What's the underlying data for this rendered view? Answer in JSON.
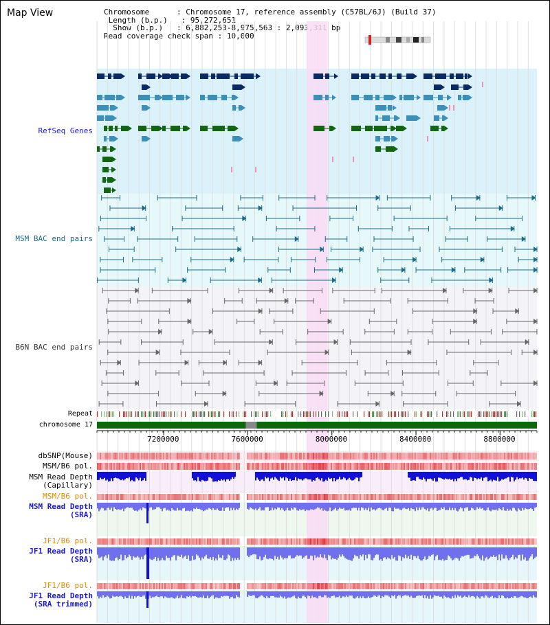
{
  "title": "Map View",
  "info": {
    "chromosome_label": "Chromosome",
    "chromosome_value": "Chromosome 17, reference assembly (C57BL/6J) (Build 37)",
    "length_label": "Length (b.p.)",
    "length_value": "95,272,651",
    "show_label": "Show (b.p.)",
    "show_value": "6,882,253-8,975,563 : 2,093,311 bp",
    "coverage_label": "Read coverage check span",
    "coverage_value": "10,000"
  },
  "tracks": {
    "refseq": "RefSeq Genes",
    "msm_bac": "MSM BAC end pairs",
    "b6n_bac": "B6N BAC end pairs",
    "repeat": "Repeat",
    "chromosome": "chromosome 17",
    "dbsnp": "dbSNP(Mouse)",
    "msm_b6_pol_1": "MSM/B6 pol.",
    "msm_depth_cap_1": "MSM Read Depth",
    "msm_depth_cap_2": "(Capillary)",
    "msm_b6_pol_2": "MSM/B6 pol.",
    "msm_depth_sra_1": "MSM Read Depth",
    "msm_depth_sra_2": "(SRA)",
    "jf1_pol_1": "JF1/B6 pol.",
    "jf1_depth_1": "JF1 Read Depth",
    "jf1_depth_2": "(SRA)",
    "jf1_pol_2": "JF1/B6 pol.",
    "jf1_trim_1": "JF1 Read Depth",
    "jf1_trim_2": "(SRA trimmed)"
  },
  "axis": {
    "ticks": [
      "7200000",
      "7600000",
      "8000000",
      "8400000",
      "8800000"
    ],
    "tick_values": [
      7200000,
      7600000,
      8000000,
      8400000,
      8800000
    ],
    "start": 6882253,
    "end": 8975563
  },
  "highlight": {
    "start": 7880000,
    "end": 7980000
  },
  "colors": {
    "refseq_bg": "#dcf2fa",
    "msm_bg": "#e6f8fa",
    "b6n_bg": "#f4f4f8",
    "highlight": "#f9dcf5",
    "gene_dark": "#0a2a66",
    "gene_mid": "#3a90b8",
    "gene_green": "#126612",
    "bac_msm": "#1a6b87",
    "bac_b6n": "#666666",
    "chrom_green": "#0a6a0a",
    "depth_blue": "#1010d8",
    "depth_light": "#7070ee",
    "pol_red": "#e03030"
  }
}
